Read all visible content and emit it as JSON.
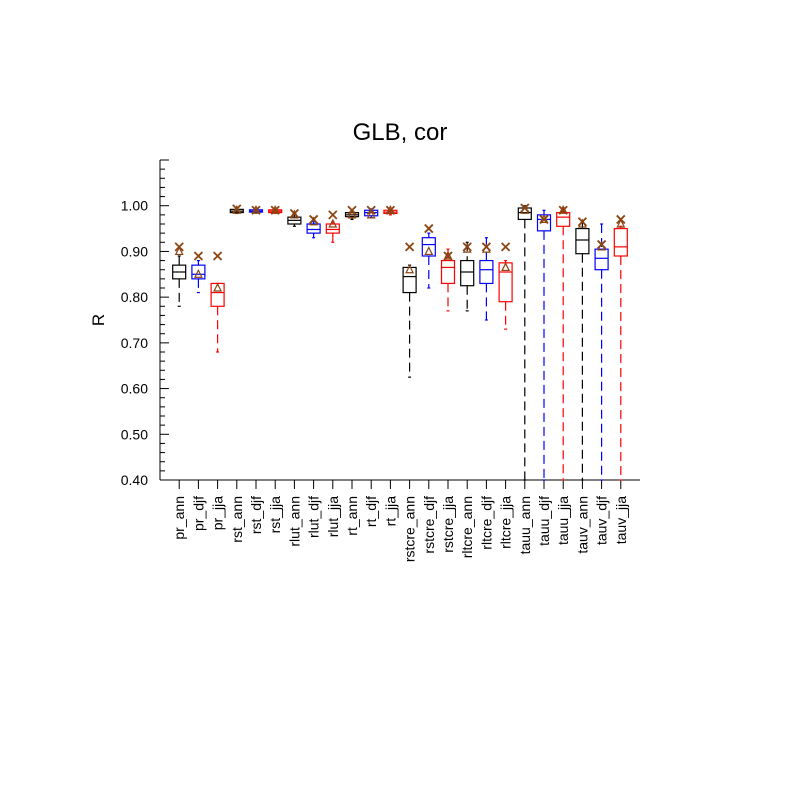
{
  "chart_data": {
    "type": "box",
    "title": "GLB, cor",
    "xlabel": "",
    "ylabel": "R",
    "ylim": [
      0.4,
      1.1
    ],
    "yticks": [
      "0.40",
      "0.50",
      "0.60",
      "0.70",
      "0.80",
      "0.90",
      "1.00"
    ],
    "season_colors": {
      "ann": "#000000",
      "djf": "#0000ff",
      "jja": "#ff0000"
    },
    "marker_colors": {
      "x_marker": "#8b4513",
      "triangle_marker": "#8b4513"
    },
    "categories": [
      "pr_ann",
      "pr_djf",
      "pr_jja",
      "rst_ann",
      "rst_djf",
      "rst_jja",
      "rlut_ann",
      "rlut_djf",
      "rlut_jja",
      "rt_ann",
      "rt_djf",
      "rt_jja",
      "rstcre_ann",
      "rstcre_djf",
      "rstcre_jja",
      "rltcre_ann",
      "rltcre_djf",
      "rltcre_jja",
      "tauu_ann",
      "tauu_djf",
      "tauu_jja",
      "tauv_ann",
      "tauv_djf",
      "tauv_jja"
    ],
    "boxes": [
      {
        "min": 0.78,
        "q1": 0.84,
        "median": 0.855,
        "q3": 0.87,
        "max": 0.89,
        "x_marker": 0.91,
        "triangle_marker": 0.9
      },
      {
        "min": 0.81,
        "q1": 0.84,
        "median": 0.85,
        "q3": 0.87,
        "max": 0.88,
        "x_marker": 0.89,
        "triangle_marker": 0.85
      },
      {
        "min": 0.68,
        "q1": 0.78,
        "median": 0.81,
        "q3": 0.83,
        "max": 0.83,
        "x_marker": 0.89,
        "triangle_marker": 0.82
      },
      {
        "min": 0.983,
        "q1": 0.985,
        "median": 0.988,
        "q3": 0.992,
        "max": 0.996,
        "x_marker": 0.993,
        "triangle_marker": 0.99
      },
      {
        "min": 0.985,
        "q1": 0.986,
        "median": 0.988,
        "q3": 0.991,
        "max": 0.993,
        "x_marker": 0.99,
        "triangle_marker": 0.99
      },
      {
        "min": 0.983,
        "q1": 0.985,
        "median": 0.988,
        "q3": 0.991,
        "max": 0.993,
        "x_marker": 0.99,
        "triangle_marker": 0.99
      },
      {
        "min": 0.955,
        "q1": 0.96,
        "median": 0.968,
        "q3": 0.975,
        "max": 0.98,
        "x_marker": 0.983,
        "triangle_marker": 0.98
      },
      {
        "min": 0.93,
        "q1": 0.94,
        "median": 0.948,
        "q3": 0.96,
        "max": 0.965,
        "x_marker": 0.97,
        "triangle_marker": 0.965
      },
      {
        "min": 0.92,
        "q1": 0.94,
        "median": 0.948,
        "q3": 0.96,
        "max": 0.965,
        "x_marker": 0.98,
        "triangle_marker": 0.96
      },
      {
        "min": 0.97,
        "q1": 0.976,
        "median": 0.98,
        "q3": 0.985,
        "max": 0.99,
        "x_marker": 0.99,
        "triangle_marker": 0.98
      },
      {
        "min": 0.974,
        "q1": 0.978,
        "median": 0.985,
        "q3": 0.99,
        "max": 0.993,
        "x_marker": 0.99,
        "triangle_marker": 0.98
      },
      {
        "min": 0.98,
        "q1": 0.983,
        "median": 0.986,
        "q3": 0.99,
        "max": 0.993,
        "x_marker": 0.99,
        "triangle_marker": 0.99
      },
      {
        "min": 0.625,
        "q1": 0.81,
        "median": 0.845,
        "q3": 0.865,
        "max": 0.87,
        "x_marker": 0.91,
        "triangle_marker": 0.86
      },
      {
        "min": 0.82,
        "q1": 0.89,
        "median": 0.915,
        "q3": 0.93,
        "max": 0.94,
        "x_marker": 0.95,
        "triangle_marker": 0.9
      },
      {
        "min": 0.77,
        "q1": 0.83,
        "median": 0.865,
        "q3": 0.88,
        "max": 0.905,
        "x_marker": 0.89,
        "triangle_marker": 0.89
      },
      {
        "min": 0.77,
        "q1": 0.825,
        "median": 0.855,
        "q3": 0.88,
        "max": 0.92,
        "x_marker": 0.91,
        "triangle_marker": 0.905
      },
      {
        "min": 0.75,
        "q1": 0.83,
        "median": 0.86,
        "q3": 0.88,
        "max": 0.93,
        "x_marker": 0.91,
        "triangle_marker": 0.905
      },
      {
        "min": 0.73,
        "q1": 0.79,
        "median": 0.855,
        "q3": 0.875,
        "max": 0.88,
        "x_marker": 0.91,
        "triangle_marker": 0.865
      },
      {
        "min": 0.4,
        "q1": 0.97,
        "median": 0.985,
        "q3": 0.995,
        "max": 1.0,
        "x_marker": 0.995,
        "triangle_marker": 0.99
      },
      {
        "min": 0.4,
        "q1": 0.945,
        "median": 0.97,
        "q3": 0.98,
        "max": 0.99,
        "x_marker": 0.97,
        "triangle_marker": 0.97
      },
      {
        "min": 0.4,
        "q1": 0.955,
        "median": 0.975,
        "q3": 0.985,
        "max": 0.995,
        "x_marker": 0.99,
        "triangle_marker": 0.99
      },
      {
        "min": 0.4,
        "q1": 0.895,
        "median": 0.925,
        "q3": 0.95,
        "max": 0.965,
        "x_marker": 0.965,
        "triangle_marker": 0.96
      },
      {
        "min": 0.4,
        "q1": 0.86,
        "median": 0.885,
        "q3": 0.905,
        "max": 0.96,
        "x_marker": 0.915,
        "triangle_marker": 0.91
      },
      {
        "min": 0.4,
        "q1": 0.89,
        "median": 0.91,
        "q3": 0.95,
        "max": 0.955,
        "x_marker": 0.97,
        "triangle_marker": 0.96
      }
    ]
  }
}
